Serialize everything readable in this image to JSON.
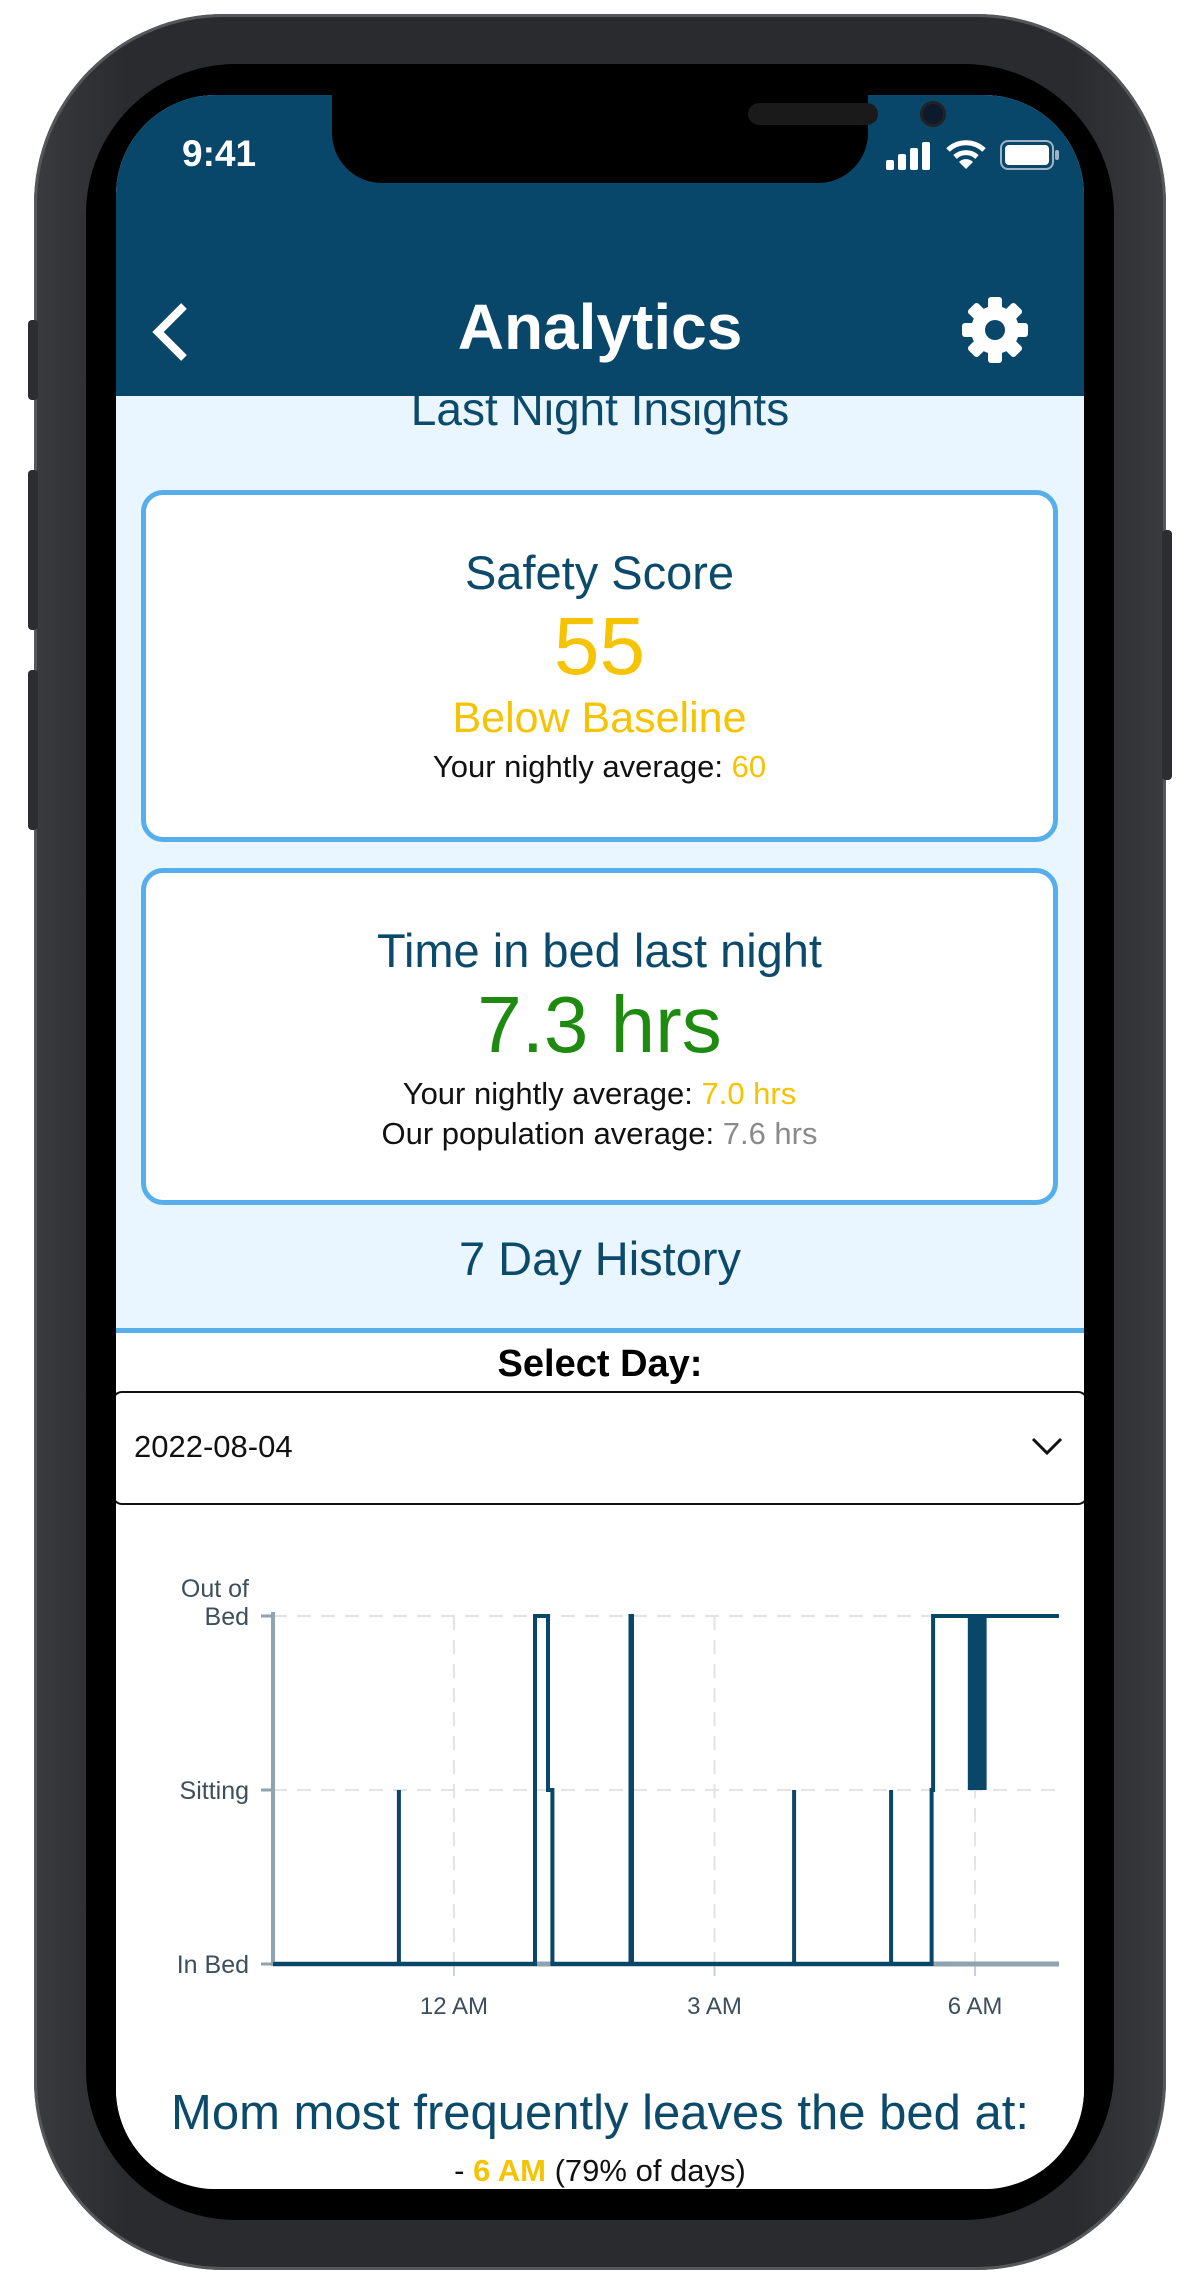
{
  "status_bar": {
    "time": "9:41",
    "icons": [
      "signal-icon",
      "wifi-icon",
      "battery-icon"
    ]
  },
  "header": {
    "title": "Analytics",
    "back_icon": "chevron-left-icon",
    "settings_icon": "gear-icon"
  },
  "insights": {
    "section_title": "Last Night Insights",
    "safety": {
      "title": "Safety Score",
      "score": "55",
      "status": "Below Baseline",
      "avg_label": "Your nightly average: ",
      "avg_value": "60"
    },
    "time_in_bed": {
      "title": "Time in bed last night",
      "value": "7.3 hrs",
      "avg_label": "Your nightly average: ",
      "avg_value": "7.0 hrs",
      "pop_label": "Our population average: ",
      "pop_value": "7.6 hrs"
    }
  },
  "history": {
    "section_title": "7 Day History",
    "select_label": "Select Day:",
    "selected_day": "2022-08-04"
  },
  "colors": {
    "header": "#08466A",
    "accent_border": "#56AEEB",
    "warning": "#F5C300",
    "good": "#1E8A10",
    "line": "#08466A",
    "panel": "#EAF6FF"
  },
  "chart_data": {
    "type": "line",
    "step": true,
    "y_categories": [
      "In Bed",
      "Sitting",
      "Out of\nBed"
    ],
    "x_ticks": [
      "12 AM",
      "3 AM",
      "6 AM"
    ],
    "x_tick_times": [
      "00:00",
      "03:00",
      "06:00"
    ],
    "xlim": [
      "21:55",
      "06:58"
    ],
    "grid": true,
    "points": [
      [
        "21:55",
        0
      ],
      [
        "23:22",
        0
      ],
      [
        "23:22",
        1
      ],
      [
        "23:22",
        0
      ],
      [
        "00:56",
        0
      ],
      [
        "00:56",
        2
      ],
      [
        "01:05",
        2
      ],
      [
        "01:05",
        1
      ],
      [
        "01:08",
        1
      ],
      [
        "01:08",
        0
      ],
      [
        "02:02",
        0
      ],
      [
        "02:02",
        2
      ],
      [
        "02:03",
        2
      ],
      [
        "02:03",
        0
      ],
      [
        "03:55",
        0
      ],
      [
        "03:55",
        1
      ],
      [
        "03:55",
        0
      ],
      [
        "05:02",
        0
      ],
      [
        "05:02",
        1
      ],
      [
        "05:02",
        0
      ],
      [
        "05:30",
        0
      ],
      [
        "05:30",
        1
      ],
      [
        "05:31",
        1
      ],
      [
        "05:31",
        2
      ],
      [
        "06:58",
        2
      ]
    ],
    "filled_ranges": [
      {
        "start": "05:55",
        "end": "06:08",
        "from": 1,
        "to": 2
      }
    ]
  },
  "summary": {
    "title": "Mom most frequently leaves the bed at:",
    "prefix": "- ",
    "time": "6 AM",
    "suffix": " (79% of days)"
  }
}
